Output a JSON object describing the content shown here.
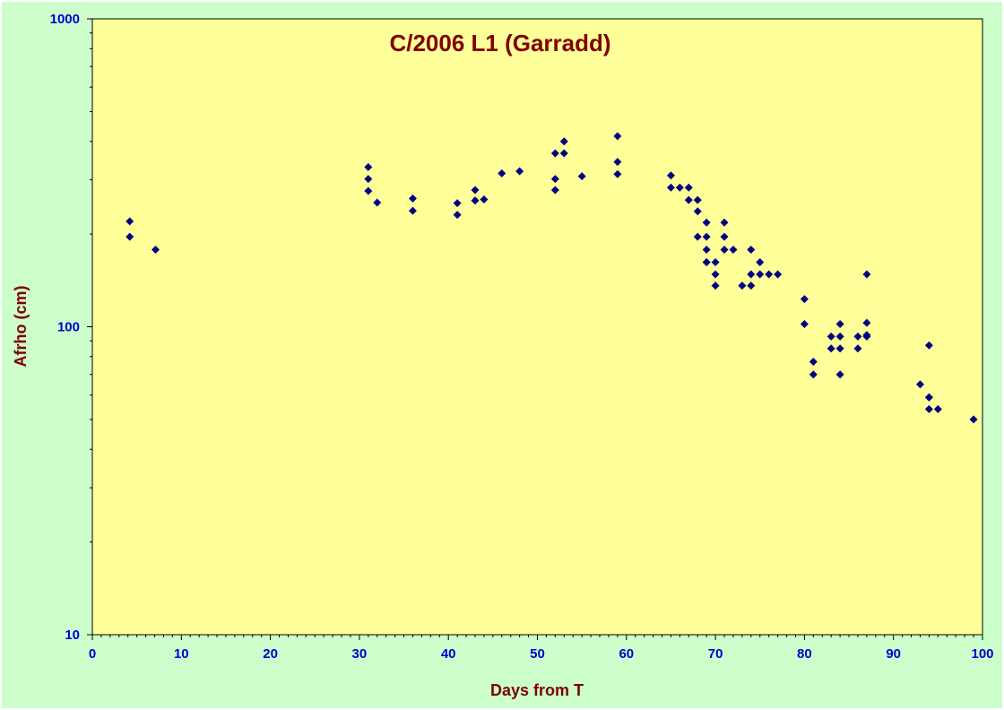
{
  "chart_data": {
    "type": "scatter",
    "title": "C/2006 L1 (Garradd)",
    "xlabel": "Days from T",
    "ylabel": "Afrho (cm)",
    "xlim": [
      0,
      100
    ],
    "ylim": [
      10,
      1000
    ],
    "yscale": "log",
    "x_ticks": [
      "0",
      "10",
      "20",
      "30",
      "40",
      "50",
      "60",
      "70",
      "80",
      "90",
      "100"
    ],
    "y_ticks": [
      "10",
      "100",
      "1000"
    ],
    "grid": false,
    "legend": "none",
    "colors": {
      "background": "#ccffcc",
      "plot_area": "#ffff99",
      "marker": "#000080",
      "tick_text": "#0000cc",
      "title_text": "#800000"
    },
    "x": [
      4.2,
      4.2,
      7.1,
      31,
      31,
      31,
      32,
      36,
      36,
      41,
      41,
      43,
      43,
      44,
      46,
      48,
      52,
      52,
      52,
      53,
      53,
      55,
      59,
      59,
      59,
      65,
      65,
      66,
      67,
      67,
      68,
      68,
      68,
      69,
      69,
      69,
      69,
      69,
      70,
      70,
      70,
      71,
      71,
      71,
      72,
      73,
      74,
      74,
      74,
      75,
      75,
      76,
      77,
      80,
      80,
      81,
      81,
      83,
      83,
      84,
      84,
      84,
      84,
      86,
      86,
      87,
      87,
      87,
      87,
      93,
      94,
      94,
      94,
      94,
      95,
      99
    ],
    "y": [
      220,
      196,
      178,
      330,
      302,
      276,
      253,
      261,
      238,
      252,
      231,
      278,
      257,
      259,
      315,
      320,
      366,
      302,
      278,
      400,
      366,
      308,
      416,
      343,
      313,
      310,
      283,
      283,
      283,
      258,
      258,
      237,
      196,
      218,
      196,
      178,
      162,
      162,
      148,
      136,
      162,
      218,
      196,
      178,
      178,
      136,
      178,
      148,
      136,
      162,
      148,
      148,
      148,
      123,
      102,
      77,
      70,
      93,
      85,
      102,
      93,
      85,
      70,
      93,
      85,
      148,
      103,
      93,
      94,
      65,
      59,
      59,
      54,
      87,
      54,
      50
    ]
  }
}
